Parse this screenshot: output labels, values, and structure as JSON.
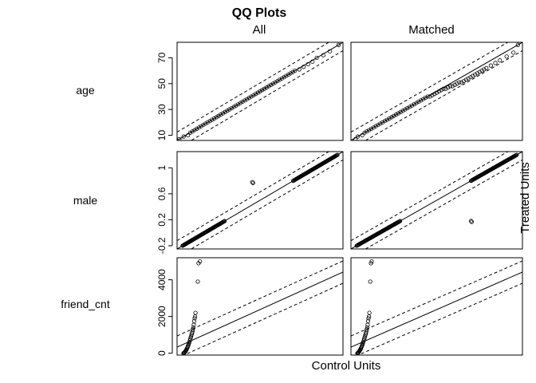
{
  "chart_data": {
    "type": "scatter",
    "title": "QQ Plots",
    "column_labels": [
      "All",
      "Matched"
    ],
    "xlabel": "Control Units",
    "ylabel": "Treated Units",
    "grid": false,
    "legend": "none",
    "panels": [
      {
        "row": "age",
        "ylim": [
          6,
          82
        ],
        "yticks": [
          10,
          30,
          50,
          70
        ],
        "all": {
          "points": [
            [
              7,
              7
            ],
            [
              9,
              9
            ],
            [
              11,
              10
            ],
            [
              12,
              12
            ],
            [
              13,
              13
            ],
            [
              14,
              14
            ],
            [
              15,
              15
            ],
            [
              16,
              16
            ],
            [
              17,
              17
            ],
            [
              18,
              18
            ],
            [
              19,
              19
            ],
            [
              20,
              20
            ],
            [
              21,
              21
            ],
            [
              22,
              22
            ],
            [
              23,
              23
            ],
            [
              24,
              24
            ],
            [
              25,
              25
            ],
            [
              26,
              26
            ],
            [
              27,
              27
            ],
            [
              28,
              28
            ],
            [
              29,
              29
            ],
            [
              30,
              30
            ],
            [
              31,
              31
            ],
            [
              32,
              32
            ],
            [
              33,
              33
            ],
            [
              34,
              34
            ],
            [
              35,
              35
            ],
            [
              36,
              36
            ],
            [
              37,
              37
            ],
            [
              38,
              38
            ],
            [
              39,
              39
            ],
            [
              40,
              40
            ],
            [
              41,
              41
            ],
            [
              42,
              42
            ],
            [
              43,
              43
            ],
            [
              44,
              44
            ],
            [
              45,
              45
            ],
            [
              46,
              46
            ],
            [
              47,
              47
            ],
            [
              48,
              48
            ],
            [
              49,
              49
            ],
            [
              50,
              50
            ],
            [
              51,
              51
            ],
            [
              52,
              52
            ],
            [
              53,
              53
            ],
            [
              54,
              54
            ],
            [
              55,
              55
            ],
            [
              56,
              56
            ],
            [
              57,
              57
            ],
            [
              58,
              58
            ],
            [
              59,
              59
            ],
            [
              60,
              60
            ],
            [
              62,
              61
            ],
            [
              64,
              63
            ],
            [
              66,
              65
            ],
            [
              68,
              67
            ],
            [
              70,
              70
            ],
            [
              73,
              72
            ],
            [
              76,
              75
            ],
            [
              80,
              80
            ]
          ]
        },
        "matched": {
          "points": [
            [
              8,
              7
            ],
            [
              9,
              9
            ],
            [
              11,
              10
            ],
            [
              12,
              12
            ],
            [
              13,
              13
            ],
            [
              14,
              14
            ],
            [
              15,
              15
            ],
            [
              16,
              16
            ],
            [
              17,
              17
            ],
            [
              18,
              18
            ],
            [
              19,
              19
            ],
            [
              20,
              20
            ],
            [
              21,
              21
            ],
            [
              22,
              22
            ],
            [
              23,
              23
            ],
            [
              24,
              24
            ],
            [
              25,
              25
            ],
            [
              26,
              26
            ],
            [
              27,
              27
            ],
            [
              28,
              28
            ],
            [
              29,
              29
            ],
            [
              30,
              30
            ],
            [
              31,
              31
            ],
            [
              32,
              32
            ],
            [
              33,
              33
            ],
            [
              34,
              34
            ],
            [
              35,
              35
            ],
            [
              36,
              36
            ],
            [
              37,
              37
            ],
            [
              38,
              38
            ],
            [
              39,
              39
            ],
            [
              40,
              40
            ],
            [
              41,
              40
            ],
            [
              42,
              41
            ],
            [
              43,
              42
            ],
            [
              44,
              43
            ],
            [
              45,
              44
            ],
            [
              46,
              45
            ],
            [
              47,
              46
            ],
            [
              48,
              46
            ],
            [
              49,
              47
            ],
            [
              50,
              48
            ],
            [
              51,
              48
            ],
            [
              52,
              49
            ],
            [
              53,
              50
            ],
            [
              54,
              51
            ],
            [
              55,
              51
            ],
            [
              56,
              52
            ],
            [
              57,
              53
            ],
            [
              58,
              54
            ],
            [
              59,
              55
            ],
            [
              60,
              56
            ],
            [
              61,
              57
            ],
            [
              62,
              58
            ],
            [
              63,
              59
            ],
            [
              64,
              60
            ],
            [
              65,
              61
            ],
            [
              66,
              62
            ],
            [
              68,
              64
            ],
            [
              70,
              66
            ],
            [
              72,
              68
            ],
            [
              75,
              71
            ],
            [
              78,
              74
            ],
            [
              80,
              80
            ]
          ]
        }
      },
      {
        "row": "male",
        "ylim": [
          -0.25,
          1.25
        ],
        "yticks": [
          -0.2,
          0.2,
          0.6,
          1.0
        ],
        "all": {
          "groups": [
            {
              "x_range": [
                -0.2,
                0.18
              ],
              "y_range": [
                -0.2,
                0.18
              ]
            },
            {
              "x_range": [
                0.8,
                1.2
              ],
              "y_range": [
                0.8,
                1.2
              ]
            }
          ],
          "extra_points": [
            [
              0.43,
              0.78
            ]
          ]
        },
        "matched": {
          "groups": [
            {
              "x_range": [
                -0.2,
                0.18
              ],
              "y_range": [
                -0.2,
                0.18
              ]
            },
            {
              "x_range": [
                0.8,
                1.2
              ],
              "y_range": [
                0.8,
                1.2
              ]
            }
          ],
          "extra_points": [
            [
              0.8,
              0.18
            ]
          ]
        }
      },
      {
        "row": "friend_cnt",
        "ylim": [
          -100,
          5200
        ],
        "yticks": [
          0,
          2000,
          4000
        ],
        "all": {
          "points": [
            [
              0,
              0
            ],
            [
              3,
              10
            ],
            [
              6,
              30
            ],
            [
              9,
              60
            ],
            [
              12,
              90
            ],
            [
              15,
              120
            ],
            [
              18,
              160
            ],
            [
              21,
              200
            ],
            [
              24,
              250
            ],
            [
              27,
              300
            ],
            [
              30,
              360
            ],
            [
              33,
              420
            ],
            [
              36,
              480
            ],
            [
              39,
              550
            ],
            [
              42,
              620
            ],
            [
              45,
              700
            ],
            [
              48,
              780
            ],
            [
              51,
              860
            ],
            [
              54,
              940
            ],
            [
              57,
              1020
            ],
            [
              60,
              1100
            ],
            [
              63,
              1200
            ],
            [
              66,
              1300
            ],
            [
              69,
              1400
            ],
            [
              72,
              1550
            ],
            [
              75,
              1750
            ],
            [
              78,
              1900
            ],
            [
              81,
              2000
            ],
            [
              84,
              2200
            ],
            [
              100,
              3900
            ],
            [
              105,
              4900
            ],
            [
              115,
              5000
            ]
          ]
        },
        "matched": {
          "points": [
            [
              0,
              0
            ],
            [
              3,
              10
            ],
            [
              6,
              30
            ],
            [
              9,
              60
            ],
            [
              12,
              90
            ],
            [
              15,
              120
            ],
            [
              18,
              160
            ],
            [
              21,
              200
            ],
            [
              24,
              250
            ],
            [
              27,
              300
            ],
            [
              30,
              360
            ],
            [
              33,
              420
            ],
            [
              36,
              480
            ],
            [
              39,
              550
            ],
            [
              42,
              620
            ],
            [
              45,
              700
            ],
            [
              48,
              780
            ],
            [
              51,
              860
            ],
            [
              54,
              940
            ],
            [
              57,
              1020
            ],
            [
              60,
              1100
            ],
            [
              63,
              1200
            ],
            [
              66,
              1300
            ],
            [
              69,
              1400
            ],
            [
              72,
              1550
            ],
            [
              75,
              1750
            ],
            [
              78,
              1900
            ],
            [
              81,
              2000
            ],
            [
              84,
              2200
            ],
            [
              90,
              3900
            ],
            [
              95,
              4900
            ],
            [
              100,
              5000
            ]
          ]
        }
      }
    ]
  }
}
